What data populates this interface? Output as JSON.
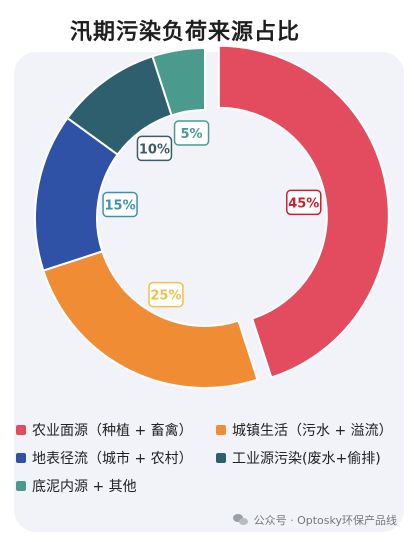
{
  "chart_data": {
    "type": "pie",
    "title": "汛期污染负荷来源占比",
    "categories": [
      "农业面源（种植 + 畜禽）",
      "城镇生活（污水 + 溢流）",
      "地表径流（城市 + 农村）",
      "工业源污染(废水+偷排)",
      "底泥内源 + 其他"
    ],
    "values": [
      45,
      25,
      15,
      10,
      5
    ],
    "labels": [
      "45%",
      "25%",
      "15%",
      "10%",
      "5%"
    ],
    "colors": [
      "#e34c5f",
      "#f08c34",
      "#2f52a6",
      "#2e5f6e",
      "#4a9a8e"
    ],
    "label_colors": [
      "#c8202e",
      "#f0c24a",
      "#3f8fb0",
      "#3d5c68",
      "#4a9a8e"
    ],
    "exploded": [
      true,
      false,
      false,
      false,
      false
    ],
    "legend_position": "bottom"
  },
  "footer": {
    "text": "公众号 · Optosky环保产品线",
    "icon": "wechat-icon"
  }
}
